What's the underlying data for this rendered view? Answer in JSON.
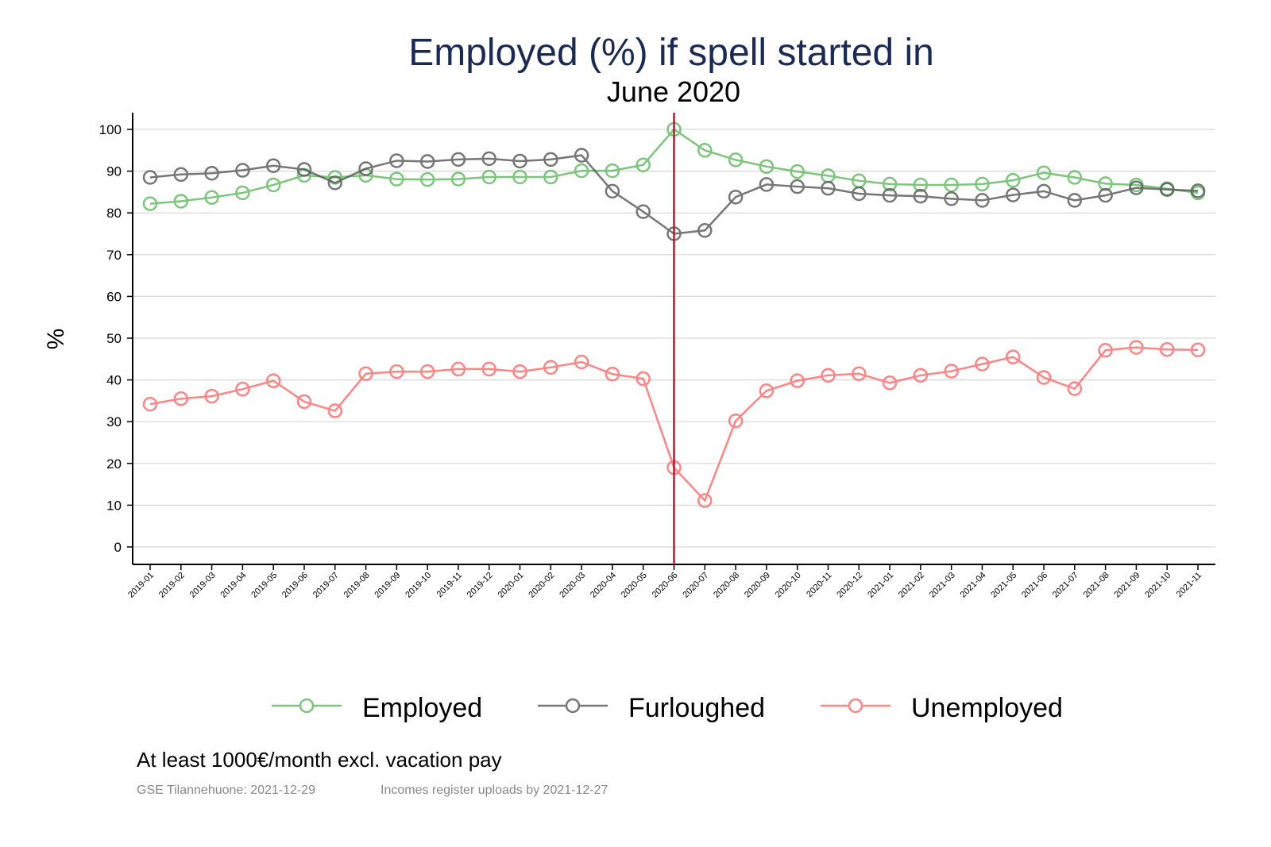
{
  "chart_data": {
    "type": "line",
    "title": "Employed (%) if spell started in",
    "subtitle": "June 2020",
    "xlabel": "",
    "ylabel": "%",
    "ylim": [
      0,
      100
    ],
    "yticks": [
      0,
      10,
      20,
      30,
      40,
      50,
      60,
      70,
      80,
      90,
      100
    ],
    "grid": true,
    "legend_position": "bottom",
    "reference_line": {
      "x": "2020-06",
      "color": "#c8102e"
    },
    "x": [
      "2019-01",
      "2019-02",
      "2019-03",
      "2019-04",
      "2019-05",
      "2019-06",
      "2019-07",
      "2019-08",
      "2019-09",
      "2019-10",
      "2019-11",
      "2019-12",
      "2020-01",
      "2020-02",
      "2020-03",
      "2020-04",
      "2020-05",
      "2020-06",
      "2020-07",
      "2020-08",
      "2020-09",
      "2020-10",
      "2020-11",
      "2020-12",
      "2021-01",
      "2021-02",
      "2021-03",
      "2021-04",
      "2021-05",
      "2021-06",
      "2021-07",
      "2021-08",
      "2021-09",
      "2021-10",
      "2021-11"
    ],
    "series": [
      {
        "name": "Employed",
        "color": "#5cb85c",
        "values": [
          82.2,
          82.8,
          83.7,
          84.8,
          86.7,
          89.0,
          88.5,
          89.0,
          88.1,
          88.0,
          88.1,
          88.6,
          88.6,
          88.6,
          90.1,
          90.1,
          91.5,
          100,
          95.0,
          92.7,
          91.1,
          89.9,
          88.9,
          87.7,
          86.9,
          86.7,
          86.7,
          86.9,
          87.8,
          89.6,
          88.5,
          87.0,
          86.7,
          85.8,
          84.8
        ]
      },
      {
        "name": "Furloughed",
        "color": "#555555",
        "values": [
          88.5,
          89.2,
          89.5,
          90.2,
          91.3,
          90.4,
          87.2,
          90.6,
          92.5,
          92.3,
          92.8,
          93.0,
          92.4,
          92.8,
          93.8,
          85.2,
          80.3,
          75.0,
          75.8,
          83.8,
          86.8,
          86.3,
          85.9,
          84.6,
          84.2,
          84.0,
          83.4,
          83.0,
          84.3,
          85.2,
          83.0,
          84.2,
          86.0,
          85.6,
          85.3
        ]
      },
      {
        "name": "Unemployed",
        "color": "#ff6666",
        "values": [
          34.2,
          35.5,
          36.1,
          37.8,
          39.8,
          34.8,
          32.6,
          41.5,
          42.0,
          42.0,
          42.6,
          42.6,
          42.0,
          43.0,
          44.3,
          41.4,
          40.3,
          19.0,
          11.1,
          30.2,
          37.4,
          39.8,
          41.1,
          41.5,
          39.3,
          41.1,
          42.1,
          43.8,
          45.5,
          40.6,
          37.9,
          47.1,
          47.8,
          47.3,
          47.2
        ]
      }
    ],
    "notes": {
      "subtitle_note": "At least 1000€/month excl. vacation pay",
      "source": "GSE Tilannehuone: 2021-12-29",
      "upload": "Incomes register uploads by 2021-12-27"
    }
  }
}
